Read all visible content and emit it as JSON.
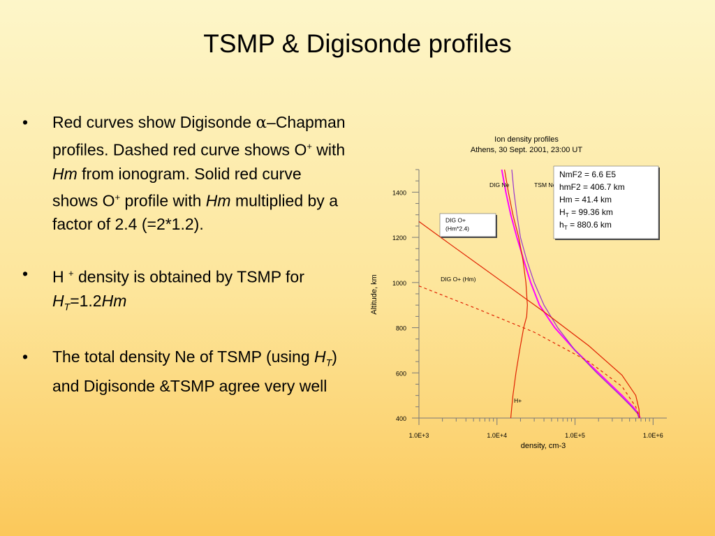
{
  "slide": {
    "title": "TSMP & Digisonde profiles",
    "bullets": [
      {
        "parts": [
          {
            "t": "Red curves show Digisonde "
          },
          {
            "t": "α",
            "sym": true
          },
          {
            "t": "–Chapman profiles. Dashed red curve shows O"
          },
          {
            "t": "+",
            "sup": true
          },
          {
            "t": " with "
          },
          {
            "t": "Hm",
            "i": true
          },
          {
            "t": " from ionogram. Solid red curve shows O"
          },
          {
            "t": "+",
            "sup": true
          },
          {
            "t": " profile with "
          },
          {
            "t": "Hm",
            "i": true
          },
          {
            "t": " multiplied by a factor of 2.4 (=2*1.2)."
          }
        ]
      },
      {
        "parts": [
          {
            "t": "H "
          },
          {
            "t": "+",
            "sup": true
          },
          {
            "t": " density is obtained by TSMP for "
          },
          {
            "t": "H",
            "i": true
          },
          {
            "t": "T",
            "sub": true,
            "i": true
          },
          {
            "t": "=1.2"
          },
          {
            "t": "Hm",
            "i": true
          }
        ]
      },
      {
        "parts": [
          {
            "t": "The total density Ne of TSMP (using "
          },
          {
            "t": "H",
            "i": true
          },
          {
            "t": "T",
            "sub": true,
            "i": true
          },
          {
            "t": ")  and Digisonde &TSMP agree very well"
          }
        ]
      }
    ]
  },
  "chart_data": {
    "type": "line",
    "title": "Ion density profiles",
    "subtitle": "Athens, 30 Sept. 2001, 23:00 UT",
    "xlabel": "density, cm-3",
    "ylabel": "Altitude, km",
    "x_scale": "log",
    "xlim": [
      1000,
      1500000
    ],
    "ylim": [
      400,
      1500
    ],
    "xticks": [
      1000,
      10000,
      100000,
      1000000
    ],
    "xtick_labels": [
      "1.0E+3",
      "1.0E+4",
      "1.0E+5",
      "1.0E+6"
    ],
    "yticks": [
      400,
      600,
      800,
      1000,
      1200,
      1400
    ],
    "ytick_labels": [
      "400",
      "600",
      "800",
      "1000",
      "1200",
      "1400"
    ],
    "series": [
      {
        "name": "DIG Ne",
        "color": "#ff00ff",
        "style": "solid",
        "points": [
          [
            11500,
            1500
          ],
          [
            13000,
            1400
          ],
          [
            15000,
            1300
          ],
          [
            18000,
            1200
          ],
          [
            22000,
            1100
          ],
          [
            27000,
            1000
          ],
          [
            35000,
            900
          ],
          [
            55000,
            800
          ],
          [
            100000,
            700
          ],
          [
            200000,
            600
          ],
          [
            400000,
            500
          ],
          [
            550000,
            450
          ],
          [
            650000,
            420
          ],
          [
            680000,
            400
          ]
        ]
      },
      {
        "name": "TSM Ne",
        "color": "#9933cc",
        "style": "solid",
        "points": [
          [
            15500,
            1500
          ],
          [
            16500,
            1400
          ],
          [
            18000,
            1300
          ],
          [
            20000,
            1200
          ],
          [
            24000,
            1100
          ],
          [
            30000,
            1000
          ],
          [
            40000,
            900
          ],
          [
            60000,
            800
          ],
          [
            100000,
            700
          ],
          [
            190000,
            600
          ],
          [
            380000,
            500
          ],
          [
            530000,
            450
          ],
          [
            630000,
            420
          ],
          [
            660000,
            400
          ]
        ]
      },
      {
        "name": "DIG O+ (Hm*2.4)",
        "color": "#e02000",
        "style": "solid",
        "points": [
          [
            1000,
            1270
          ],
          [
            2500,
            1170
          ],
          [
            10000,
            1020
          ],
          [
            40000,
            870
          ],
          [
            150000,
            720
          ],
          [
            400000,
            590
          ],
          [
            600000,
            500
          ],
          [
            660000,
            440
          ],
          [
            670000,
            400
          ]
        ]
      },
      {
        "name": "DIG O+ (Hm)",
        "color": "#e02000",
        "style": "dashed",
        "points": [
          [
            1000,
            985
          ],
          [
            5000,
            890
          ],
          [
            30000,
            780
          ],
          [
            150000,
            650
          ],
          [
            400000,
            540
          ],
          [
            600000,
            450
          ],
          [
            650000,
            410
          ]
        ]
      },
      {
        "name": "H+",
        "color": "#e02000",
        "style": "solid",
        "points": [
          [
            12500,
            1500
          ],
          [
            14000,
            1400
          ],
          [
            16000,
            1300
          ],
          [
            19000,
            1200
          ],
          [
            21500,
            1100
          ],
          [
            23500,
            1000
          ],
          [
            24500,
            900
          ],
          [
            24000,
            850
          ],
          [
            22000,
            800
          ],
          [
            19500,
            700
          ],
          [
            17500,
            600
          ],
          [
            16000,
            500
          ],
          [
            15500,
            450
          ],
          [
            15000,
            400
          ]
        ]
      }
    ],
    "annotations": [
      {
        "text": "DIG Ne",
        "at": [
          8000,
          1422
        ]
      },
      {
        "text": "TSM Ne",
        "at": [
          30000,
          1422
        ]
      },
      {
        "text": "DIG O+ (Hm)",
        "at": [
          1900,
          1005
        ]
      },
      {
        "text": "H+",
        "at": [
          16500,
          468
        ]
      }
    ],
    "boxes": [
      {
        "lines": [
          "DIG O+",
          "(Hm*2.4)"
        ]
      },
      {
        "lines": [
          "NmF2 = 6.6 E5",
          "hmF2 = 406.7 km",
          "Hm = 41.4 km",
          "H_T = 99.36 km",
          "h_T = 880.6 km"
        ]
      }
    ]
  }
}
